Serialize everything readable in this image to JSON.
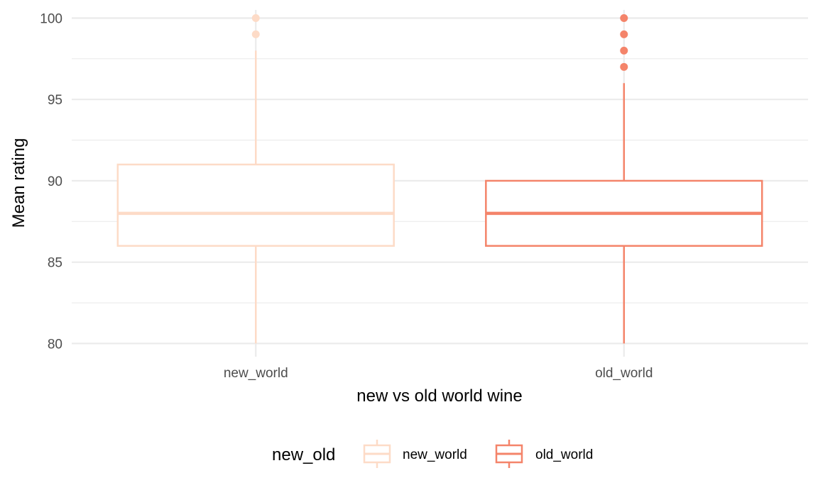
{
  "chart_data": {
    "type": "boxplot",
    "title": "",
    "xlabel": "new vs old world wine",
    "ylabel": "Mean rating",
    "ylim": [
      79.8,
      100.5
    ],
    "yticks": [
      80,
      85,
      90,
      95,
      100
    ],
    "ytick_labels": [
      "80",
      "85",
      "90",
      "95",
      "100"
    ],
    "categories": [
      "new_world",
      "old_world"
    ],
    "grid": true,
    "legend": {
      "title": "new_old",
      "position": "bottom",
      "entries": [
        "new_world",
        "old_world"
      ]
    },
    "series": [
      {
        "name": "new_world",
        "color": "#fddbc7",
        "whisker_low": 80,
        "q1": 86,
        "median": 88,
        "q3": 91,
        "whisker_high": 98,
        "outliers": [
          99,
          100
        ]
      },
      {
        "name": "old_world",
        "color": "#f4846a",
        "whisker_low": 80,
        "q1": 86,
        "median": 88,
        "q3": 90,
        "whisker_high": 96,
        "outliers": [
          97,
          98,
          99,
          100
        ]
      }
    ]
  }
}
